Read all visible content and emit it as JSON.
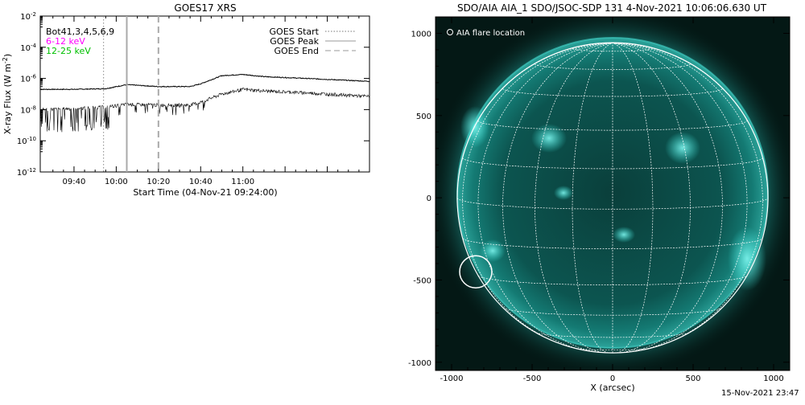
{
  "left_panel": {
    "title": "GOES17 XRS",
    "ylabel_main": "X-ray Flux (W m",
    "ylabel_sup": "-2",
    "ylabel_close": ")",
    "xlabel": "Start Time (04-Nov-21 09:24:00)",
    "channel_label": "Bot41,3,4,5,6,9",
    "energy_label_1": "6-12 keV",
    "energy_label_2": "12-25 keV",
    "legend_start": "GOES Start",
    "legend_peak": "GOES Peak",
    "legend_end": "GOES End",
    "y_base": "10",
    "y_exponents": [
      "-2",
      "-4",
      "-6",
      "-8",
      "-10",
      "-12"
    ],
    "x_ticks": [
      "09:40",
      "10:00",
      "10:20",
      "10:40",
      "11:00"
    ]
  },
  "right_panel": {
    "title": "SDO/AIA AIA_1 SDO/JSOC-SDP 131  4-Nov-2021 10:06:06.630 UT",
    "legend": "AIA flare location",
    "xlabel": "X (arcsec)",
    "x_ticks": [
      "-1000",
      "-500",
      "0",
      "500",
      "1000"
    ],
    "y_ticks": [
      "1000",
      "500",
      "0",
      "-500",
      "-1000"
    ]
  },
  "footer_stamp": "15-Nov-2021 23:47",
  "colors": {
    "energy_1": "#ff00ff",
    "energy_2": "#00c000",
    "sun_disk": "#0e6f6b",
    "sun_bright": "#38e6dc",
    "sky": "#041815"
  },
  "chart_data": [
    {
      "type": "line",
      "title": "GOES17 XRS",
      "xlabel": "Start Time (04-Nov-21 09:24:00)",
      "ylabel": "X-ray Flux (W m^-2)",
      "y_scale": "log",
      "ylim": [
        1e-12,
        0.01
      ],
      "xlim": [
        "09:24",
        "12:00"
      ],
      "x_tick_labels": [
        "09:40",
        "10:00",
        "10:20",
        "10:40",
        "11:00"
      ],
      "x": [
        "09:24",
        "09:40",
        "09:55",
        "10:05",
        "10:20",
        "10:35",
        "10:40",
        "10:50",
        "11:00",
        "11:10",
        "11:30",
        "12:00"
      ],
      "series": [
        {
          "name": "12-25 keV",
          "values": [
            2e-07,
            2e-07,
            2.2e-07,
            4e-07,
            3e-07,
            3e-07,
            4.5e-07,
            1.5e-06,
            1.8e-06,
            1.3e-06,
            1e-06,
            6.5e-07
          ]
        },
        {
          "name": "6-12 keV",
          "values": [
            1e-08,
            1.2e-08,
            1.5e-08,
            2.2e-08,
            2e-08,
            2e-08,
            3e-08,
            1e-07,
            2e-07,
            1.6e-07,
            1.2e-07,
            7e-08
          ]
        }
      ],
      "vertical_markers": [
        {
          "name": "GOES Start",
          "x": "09:54",
          "style": "dotted"
        },
        {
          "name": "GOES Peak",
          "x": "10:05",
          "style": "solid"
        },
        {
          "name": "GOES End",
          "x": "10:20",
          "style": "dashed"
        }
      ],
      "legend_position": "top-right"
    },
    {
      "type": "scatter",
      "title": "SDO/AIA AIA_1 SDO/JSOC-SDP 131  4-Nov-2021 10:06:06.630 UT",
      "xlabel": "X (arcsec)",
      "ylabel": "",
      "xlim": [
        -1100,
        1100
      ],
      "ylim": [
        -1050,
        1100
      ],
      "x_ticks": [
        -1000,
        -500,
        0,
        500,
        1000
      ],
      "y_ticks": [
        -1000,
        -500,
        0,
        500,
        1000
      ],
      "solar_radius_arcsec": 965,
      "flare_location": {
        "name": "AIA flare location",
        "x": -850,
        "y": -450,
        "radius_arcsec": 100
      },
      "legend_position": "top-left"
    }
  ]
}
